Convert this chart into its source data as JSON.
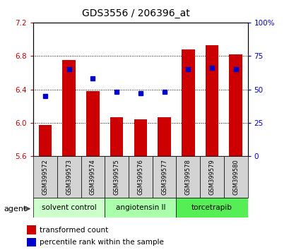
{
  "title": "GDS3556 / 206396_at",
  "samples": [
    "GSM399572",
    "GSM399573",
    "GSM399574",
    "GSM399575",
    "GSM399576",
    "GSM399577",
    "GSM399578",
    "GSM399579",
    "GSM399580"
  ],
  "transformed_count": [
    5.97,
    6.75,
    6.38,
    6.07,
    6.04,
    6.07,
    6.88,
    6.93,
    6.82
  ],
  "percentile_rank": [
    45,
    65,
    58,
    48,
    47,
    48,
    65,
    66,
    65
  ],
  "ylim_left": [
    5.6,
    7.2
  ],
  "ylim_right": [
    0,
    100
  ],
  "yticks_left": [
    5.6,
    6.0,
    6.4,
    6.8,
    7.2
  ],
  "yticks_right": [
    0,
    25,
    50,
    75,
    100
  ],
  "ytick_labels_right": [
    "0",
    "25",
    "50",
    "75",
    "100%"
  ],
  "bar_color": "#cc0000",
  "dot_color": "#0000cc",
  "bar_width": 0.55,
  "groups": [
    {
      "label": "solvent control",
      "indices": [
        0,
        1,
        2
      ],
      "color": "#ccffcc"
    },
    {
      "label": "angiotensin II",
      "indices": [
        3,
        4,
        5
      ],
      "color": "#aaffaa"
    },
    {
      "label": "torcetrapib",
      "indices": [
        6,
        7,
        8
      ],
      "color": "#55ee55"
    }
  ],
  "agent_label": "agent",
  "legend_items": [
    {
      "label": "transformed count",
      "color": "#cc0000"
    },
    {
      "label": "percentile rank within the sample",
      "color": "#0000cc"
    }
  ],
  "axis_label_color_left": "#cc0000",
  "axis_label_color_right": "#0000cc"
}
